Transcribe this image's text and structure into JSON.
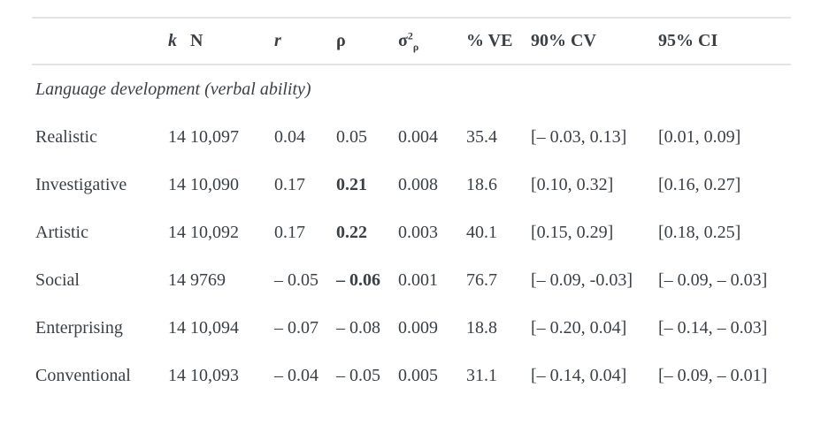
{
  "table": {
    "headers": {
      "trait": "",
      "k": "k",
      "n": "N",
      "r": "r",
      "rho": "ρ",
      "sigma": {
        "base": "σ",
        "sup": "2",
        "sub": "ρ"
      },
      "ve": "% VE",
      "cv": "90% CV",
      "ci": "95% CI"
    },
    "section": "Language development (verbal ability)",
    "rows": [
      {
        "trait": "Realistic",
        "k": "14",
        "n": "10,097",
        "r": "0.04",
        "rho": "0.05",
        "rho_bold": false,
        "sigma": "0.004",
        "ve": "35.4",
        "cv": "[– 0.03, 0.13]",
        "ci": "[0.01, 0.09]"
      },
      {
        "trait": "Investigative",
        "k": "14",
        "n": "10,090",
        "r": "0.17",
        "rho": "0.21",
        "rho_bold": true,
        "sigma": "0.008",
        "ve": "18.6",
        "cv": "[0.10, 0.32]",
        "ci": "[0.16, 0.27]"
      },
      {
        "trait": "Artistic",
        "k": "14",
        "n": "10,092",
        "r": "0.17",
        "rho": "0.22",
        "rho_bold": true,
        "sigma": "0.003",
        "ve": "40.1",
        "cv": "[0.15, 0.29]",
        "ci": "[0.18, 0.25]"
      },
      {
        "trait": "Social",
        "k": "14",
        "n": "9769",
        "r": "– 0.05",
        "rho": "– 0.06",
        "rho_bold": true,
        "sigma": "0.001",
        "ve": "76.7",
        "cv": "[– 0.09, -0.03]",
        "ci": "[– 0.09, – 0.03]"
      },
      {
        "trait": "Enterprising",
        "k": "14",
        "n": "10,094",
        "r": "– 0.07",
        "rho": "– 0.08",
        "rho_bold": false,
        "sigma": "0.009",
        "ve": "18.8",
        "cv": "[– 0.20, 0.04]",
        "ci": "[– 0.14, – 0.03]"
      },
      {
        "trait": "Conventional",
        "k": "14",
        "n": "10,093",
        "r": "– 0.04",
        "rho": "– 0.05",
        "rho_bold": false,
        "sigma": "0.005",
        "ve": "31.1",
        "cv": "[– 0.14, 0.04]",
        "ci": "[– 0.09, – 0.01]"
      }
    ]
  }
}
